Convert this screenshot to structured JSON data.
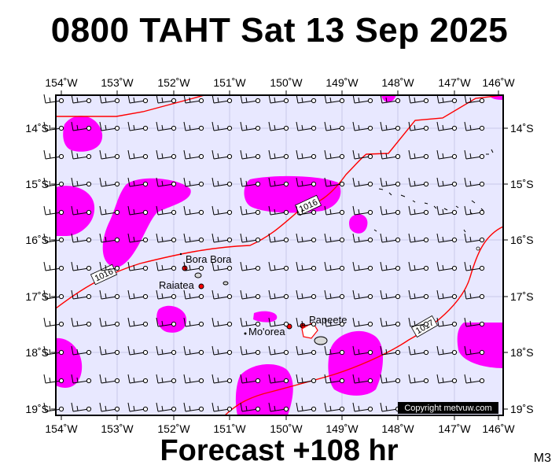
{
  "title": "0800 TAHT Sat 13 Sep 2025",
  "footer": "Forecast +108 hr",
  "model_tag": "M3",
  "copyright": "Copyright metvuw.com",
  "map": {
    "lon_labels": [
      "154˚W",
      "153˚W",
      "152˚W",
      "151˚W",
      "150˚W",
      "149˚W",
      "148˚W",
      "147˚W",
      "146˚W"
    ],
    "lat_labels": [
      "14˚S",
      "15˚S",
      "16˚S",
      "17˚S",
      "18˚S",
      "19˚S"
    ],
    "places": [
      {
        "name": "Bora Bora"
      },
      {
        "name": "Raiatea"
      },
      {
        "name": "Mo'orea"
      },
      {
        "name": "Papeete"
      }
    ],
    "isobars": [
      {
        "label": "1016",
        "color": "#ff0000"
      },
      {
        "label": "1016",
        "color": "#ff0000"
      },
      {
        "label": "1017",
        "color": "#ff0000"
      }
    ],
    "precip_color": "#ff00ff",
    "background_color": "#e8e8ff",
    "grid_color": "#c0c0e0"
  }
}
